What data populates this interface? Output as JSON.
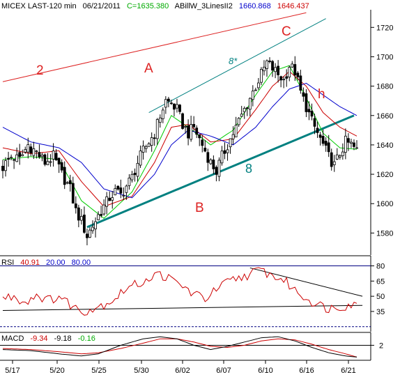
{
  "header": {
    "symbol": "MICEX LAST-120 min",
    "date": "06/21/2011",
    "close": "C=1635.380",
    "indicator_name": "ABillW_3LinesII2",
    "indicator_val1": "1660.868",
    "indicator_val2": "1646.437"
  },
  "rsi_header": {
    "name": "RSI",
    "value": "40.91",
    "lower": "20.00",
    "upper": "80.00"
  },
  "macd_header": {
    "name": "MACD",
    "macd": "-9.34",
    "signal": "-9.18",
    "hist": "-0.16"
  },
  "annotations": {
    "wave2": "2",
    "waveA": "A",
    "waveB": "B",
    "waveC": "C",
    "waveH": "h",
    "line8": "8",
    "line8star": "8*"
  },
  "colors": {
    "bull": "#00aa00",
    "bear": "#ff0000",
    "candle": "#000000",
    "ma_green": "#00cc00",
    "ma_red": "#cc0000",
    "ma_blue": "#0000cc",
    "trend_teal": "#008080",
    "trend_red": "#dd2222",
    "rsi_line": "#cc0000",
    "macd_line": "#000000",
    "macd_signal": "#cc0000",
    "level_blue": "#000080"
  },
  "chart_data": [
    {
      "type": "candlestick",
      "title": "MICEX LAST-120 min",
      "x_ticks": [
        "5/17",
        "5/20",
        "5/25",
        "5/30",
        "6/02",
        "6/07",
        "6/10",
        "6/16",
        "6/21"
      ],
      "y_ticks": [
        1580,
        1600,
        1620,
        1640,
        1660,
        1680,
        1700,
        1720
      ],
      "ylim": [
        1565,
        1732
      ],
      "close_path": [
        [
          0,
          1625
        ],
        [
          3,
          1632
        ],
        [
          6,
          1630
        ],
        [
          9,
          1640
        ],
        [
          12,
          1635
        ],
        [
          15,
          1628
        ],
        [
          18,
          1632
        ],
        [
          21,
          1620
        ],
        [
          24,
          1610
        ],
        [
          26,
          1595
        ],
        [
          28,
          1588
        ],
        [
          30,
          1578
        ],
        [
          32,
          1585
        ],
        [
          34,
          1592
        ],
        [
          36,
          1598
        ],
        [
          38,
          1604
        ],
        [
          40,
          1608
        ],
        [
          42,
          1606
        ],
        [
          44,
          1612
        ],
        [
          46,
          1618
        ],
        [
          48,
          1628
        ],
        [
          50,
          1636
        ],
        [
          52,
          1642
        ],
        [
          54,
          1648
        ],
        [
          56,
          1660
        ],
        [
          58,
          1670
        ],
        [
          60,
          1668
        ],
        [
          62,
          1664
        ],
        [
          64,
          1654
        ],
        [
          66,
          1648
        ],
        [
          68,
          1652
        ],
        [
          70,
          1644
        ],
        [
          72,
          1636
        ],
        [
          74,
          1628
        ],
        [
          76,
          1622
        ],
        [
          78,
          1632
        ],
        [
          80,
          1640
        ],
        [
          82,
          1648
        ],
        [
          84,
          1656
        ],
        [
          86,
          1664
        ],
        [
          88,
          1672
        ],
        [
          90,
          1680
        ],
        [
          92,
          1688
        ],
        [
          94,
          1696
        ],
        [
          96,
          1692
        ],
        [
          98,
          1688
        ],
        [
          100,
          1684
        ],
        [
          102,
          1694
        ],
        [
          104,
          1690
        ],
        [
          106,
          1676
        ],
        [
          108,
          1666
        ],
        [
          110,
          1656
        ],
        [
          112,
          1648
        ],
        [
          114,
          1640
        ],
        [
          116,
          1632
        ],
        [
          118,
          1626
        ],
        [
          120,
          1634
        ],
        [
          122,
          1642
        ],
        [
          124,
          1640
        ],
        [
          126,
          1636
        ]
      ],
      "moving_averages": [
        {
          "name": "green",
          "values": [
            [
              0,
              1630
            ],
            [
              10,
              1632
            ],
            [
              20,
              1630
            ],
            [
              28,
              1602
            ],
            [
              36,
              1590
            ],
            [
              46,
              1608
            ],
            [
              54,
              1636
            ],
            [
              60,
              1660
            ],
            [
              66,
              1652
            ],
            [
              74,
              1640
            ],
            [
              82,
              1650
            ],
            [
              90,
              1674
            ],
            [
              96,
              1690
            ],
            [
              102,
              1694
            ],
            [
              108,
              1672
            ],
            [
              114,
              1648
            ],
            [
              120,
              1638
            ],
            [
              126,
              1637
            ]
          ]
        },
        {
          "name": "red",
          "values": [
            [
              0,
              1638
            ],
            [
              10,
              1634
            ],
            [
              20,
              1636
            ],
            [
              28,
              1615
            ],
            [
              36,
              1598
            ],
            [
              46,
              1605
            ],
            [
              54,
              1628
            ],
            [
              60,
              1652
            ],
            [
              66,
              1654
            ],
            [
              74,
              1642
            ],
            [
              82,
              1644
            ],
            [
              90,
              1664
            ],
            [
              96,
              1680
            ],
            [
              102,
              1690
            ],
            [
              108,
              1680
            ],
            [
              114,
              1662
            ],
            [
              120,
              1652
            ],
            [
              126,
              1646
            ]
          ]
        },
        {
          "name": "blue",
          "values": [
            [
              0,
              1652
            ],
            [
              10,
              1642
            ],
            [
              20,
              1638
            ],
            [
              28,
              1628
            ],
            [
              36,
              1610
            ],
            [
              46,
              1604
            ],
            [
              54,
              1620
            ],
            [
              60,
              1640
            ],
            [
              66,
              1650
            ],
            [
              74,
              1646
            ],
            [
              82,
              1640
            ],
            [
              90,
              1652
            ],
            [
              96,
              1666
            ],
            [
              102,
              1678
            ],
            [
              108,
              1682
            ],
            [
              114,
              1674
            ],
            [
              120,
              1666
            ],
            [
              126,
              1660
            ]
          ]
        }
      ],
      "trendlines": [
        {
          "name": "line-2",
          "from": [
            0,
            1683
          ],
          "to": [
            108,
            1730
          ]
        },
        {
          "name": "line-8",
          "from": [
            30,
            1584
          ],
          "to": [
            125,
            1660
          ]
        },
        {
          "name": "line-8-star",
          "from": [
            52,
            1662
          ],
          "to": [
            115,
            1726
          ]
        }
      ]
    },
    {
      "type": "line",
      "title": "RSI",
      "y_ticks": [
        35,
        50,
        65,
        80
      ],
      "ylim": [
        15,
        90
      ],
      "levels": [
        20,
        80
      ],
      "values": [
        [
          0,
          48
        ],
        [
          4,
          50
        ],
        [
          8,
          44
        ],
        [
          12,
          52
        ],
        [
          16,
          46
        ],
        [
          20,
          50
        ],
        [
          24,
          42
        ],
        [
          28,
          35
        ],
        [
          32,
          38
        ],
        [
          36,
          42
        ],
        [
          40,
          48
        ],
        [
          44,
          58
        ],
        [
          48,
          62
        ],
        [
          52,
          68
        ],
        [
          56,
          72
        ],
        [
          60,
          66
        ],
        [
          64,
          60
        ],
        [
          68,
          52
        ],
        [
          72,
          48
        ],
        [
          76,
          56
        ],
        [
          80,
          64
        ],
        [
          84,
          68
        ],
        [
          88,
          72
        ],
        [
          92,
          76
        ],
        [
          96,
          70
        ],
        [
          100,
          66
        ],
        [
          104,
          56
        ],
        [
          108,
          48
        ],
        [
          112,
          42
        ],
        [
          116,
          38
        ],
        [
          120,
          40
        ],
        [
          124,
          42
        ],
        [
          126,
          41
        ]
      ],
      "trendlines": [
        {
          "name": "rsi-falling",
          "from": [
            88,
            78
          ],
          "to": [
            128,
            50
          ]
        },
        {
          "name": "rsi-rising",
          "from": [
            0,
            36
          ],
          "to": [
            128,
            41
          ]
        }
      ]
    },
    {
      "type": "line",
      "title": "MACD",
      "y_ticks": [
        2
      ],
      "ylim": [
        -12,
        14
      ],
      "macd": [
        [
          0,
          -2
        ],
        [
          10,
          -3
        ],
        [
          20,
          -6
        ],
        [
          28,
          -8
        ],
        [
          34,
          -6
        ],
        [
          42,
          2
        ],
        [
          50,
          8
        ],
        [
          56,
          10
        ],
        [
          62,
          8
        ],
        [
          68,
          2
        ],
        [
          74,
          -2
        ],
        [
          80,
          1
        ],
        [
          86,
          5
        ],
        [
          92,
          9
        ],
        [
          98,
          10
        ],
        [
          104,
          6
        ],
        [
          110,
          0
        ],
        [
          116,
          -5
        ],
        [
          122,
          -8
        ],
        [
          126,
          -9
        ]
      ],
      "signal": [
        [
          0,
          -1
        ],
        [
          10,
          -2
        ],
        [
          20,
          -4
        ],
        [
          28,
          -6
        ],
        [
          34,
          -5
        ],
        [
          42,
          -1
        ],
        [
          50,
          4
        ],
        [
          56,
          8
        ],
        [
          62,
          8
        ],
        [
          68,
          5
        ],
        [
          74,
          1
        ],
        [
          80,
          0
        ],
        [
          86,
          2
        ],
        [
          92,
          6
        ],
        [
          98,
          8
        ],
        [
          104,
          7
        ],
        [
          110,
          3
        ],
        [
          116,
          -2
        ],
        [
          122,
          -6
        ],
        [
          126,
          -9
        ]
      ]
    }
  ]
}
